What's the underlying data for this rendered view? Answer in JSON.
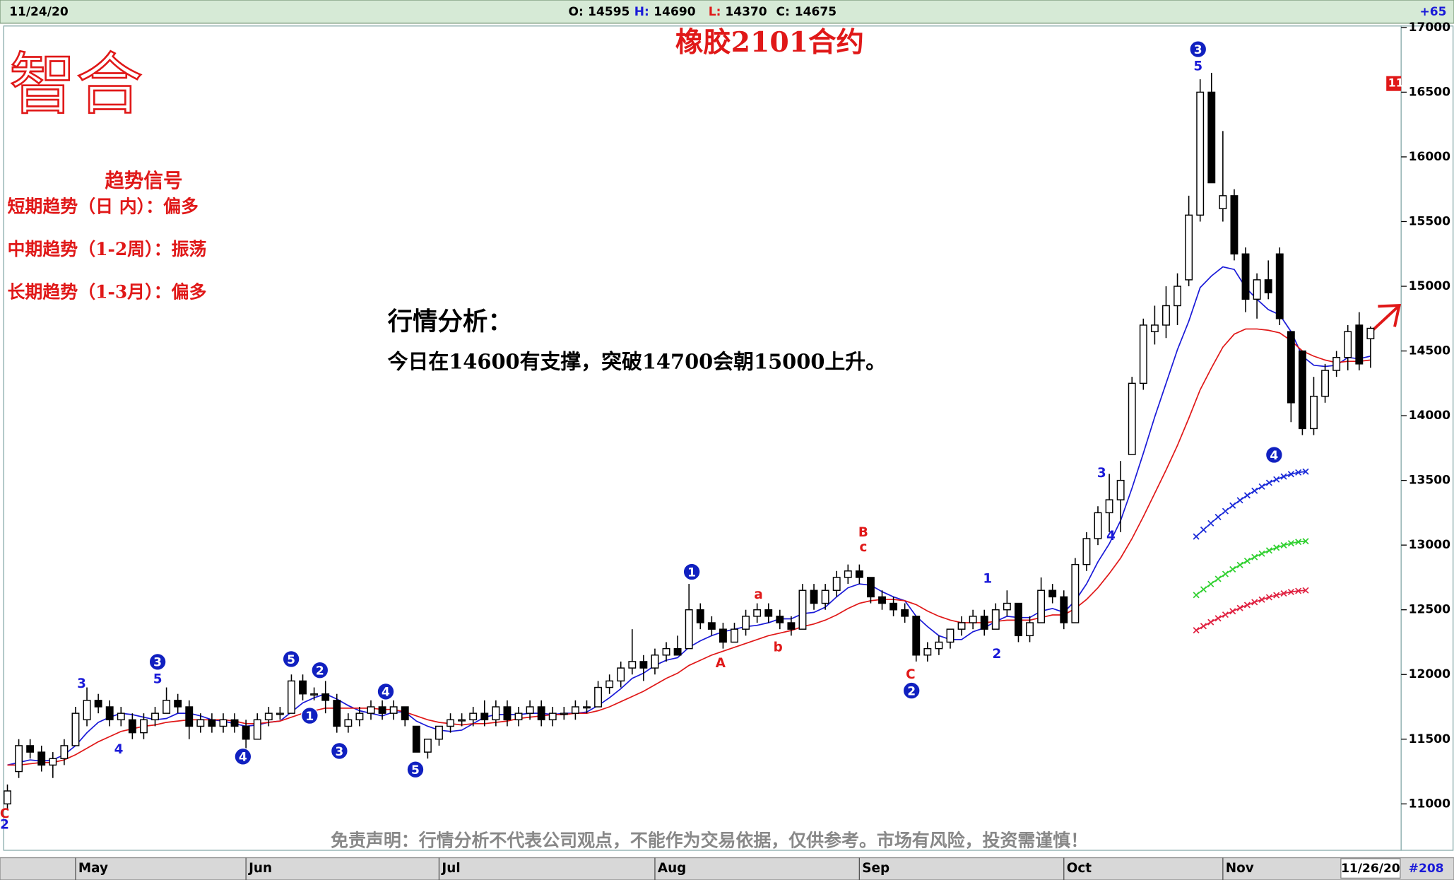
{
  "chart_data": {
    "type": "candlestick",
    "title": "橡胶2101合约",
    "logo": "智合",
    "header": {
      "date": "11/24/20",
      "quote": [
        {
          "label": "O:",
          "value": 14595
        },
        {
          "label": "H:",
          "value": 14690
        },
        {
          "label": "L:",
          "value": 14370
        },
        {
          "label": "C:",
          "value": 14675
        }
      ],
      "change": "+65"
    },
    "signals": {
      "title": "趋势信号",
      "lines": [
        "短期趋势（日 内）：偏多",
        "中期趋势（1-2周）：振荡",
        "长期趋势（1-3月）：偏多"
      ]
    },
    "analysis": {
      "title": "行情分析：",
      "text": "今日在14600有支撑，突破14700会朝15000上升。"
    },
    "disclaimer": "免责声明：行情分析不代表公司观点，不能作为交易依据，仅供参考。市场有风险，投资需谨慎！",
    "footer_date": "11/26/20",
    "bar_count": "#208",
    "price_flag": "11",
    "ylim": [
      10660,
      17000
    ],
    "yticks": [
      11000,
      11500,
      12000,
      12500,
      13000,
      13500,
      14000,
      14500,
      15000,
      15500,
      16000,
      16500,
      17000
    ],
    "categories": [
      null,
      null,
      null,
      null,
      null,
      null,
      "May",
      null,
      null,
      null,
      null,
      null,
      null,
      null,
      null,
      null,
      null,
      null,
      null,
      null,
      null,
      "Jun",
      null,
      null,
      null,
      null,
      null,
      null,
      null,
      null,
      null,
      null,
      null,
      null,
      null,
      null,
      null,
      null,
      "Jul",
      null,
      null,
      null,
      null,
      null,
      null,
      null,
      null,
      null,
      null,
      null,
      null,
      null,
      null,
      null,
      null,
      null,
      null,
      "Aug",
      null,
      null,
      null,
      null,
      null,
      null,
      null,
      null,
      null,
      null,
      null,
      null,
      null,
      null,
      null,
      null,
      null,
      "Sep",
      null,
      null,
      null,
      null,
      null,
      null,
      null,
      null,
      null,
      null,
      null,
      null,
      null,
      null,
      null,
      null,
      null,
      "Oct",
      null,
      null,
      null,
      null,
      null,
      null,
      null,
      null,
      null,
      null,
      null,
      null,
      null,
      "Nov",
      null,
      null,
      null,
      null,
      null,
      null,
      null,
      null,
      null,
      null,
      null,
      null,
      null
    ],
    "open": [
      11000,
      11250,
      11450,
      11400,
      11300,
      11350,
      11450,
      11650,
      11800,
      11750,
      11650,
      11650,
      11550,
      11650,
      11700,
      11800,
      11750,
      11600,
      11650,
      11600,
      11650,
      11600,
      11500,
      11650,
      11700,
      11700,
      11950,
      11850,
      11850,
      11800,
      11600,
      11650,
      11700,
      11750,
      11700,
      11750,
      11600,
      11400,
      11500,
      11600,
      11650,
      11650,
      11700,
      11650,
      11750,
      11650,
      11700,
      11750,
      11650,
      11700,
      11700,
      11750,
      11750,
      11900,
      11950,
      12050,
      12100,
      12050,
      12150,
      12200,
      12200,
      12500,
      12400,
      12350,
      12250,
      12350,
      12450,
      12500,
      12450,
      12400,
      12350,
      12650,
      12550,
      12650,
      12750,
      12800,
      12750,
      12600,
      12550,
      12500,
      12450,
      12150,
      12200,
      12250,
      12350,
      12400,
      12450,
      12350,
      12500,
      12550,
      12300,
      12400,
      12650,
      12600,
      12400,
      12850,
      13050,
      13250,
      13350,
      13700,
      14250,
      14650,
      14700,
      14850,
      15050,
      15550,
      16500,
      15600,
      15700,
      15250,
      14900,
      15050,
      15250,
      14650,
      14500,
      13900,
      14150,
      14350,
      14450,
      14700,
      14595
    ],
    "high": [
      11150,
      11500,
      11500,
      11450,
      11400,
      11500,
      11750,
      11900,
      11850,
      11800,
      11750,
      11700,
      11700,
      11750,
      11900,
      11850,
      11800,
      11700,
      11700,
      11700,
      11700,
      11650,
      11700,
      11750,
      11750,
      12000,
      12000,
      11900,
      11950,
      11850,
      11700,
      11750,
      11800,
      11800,
      11800,
      11750,
      11600,
      11500,
      11600,
      11700,
      11700,
      11750,
      11800,
      11800,
      11800,
      11750,
      11800,
      11800,
      11750,
      11750,
      11800,
      11800,
      11950,
      12000,
      12100,
      12350,
      12150,
      12200,
      12250,
      12300,
      12700,
      12550,
      12450,
      12400,
      12400,
      12500,
      12550,
      12550,
      12500,
      12450,
      12700,
      12700,
      12700,
      12800,
      12850,
      12850,
      12750,
      12650,
      12600,
      12550,
      12450,
      12250,
      12300,
      12350,
      12450,
      12500,
      12500,
      12550,
      12650,
      12550,
      12450,
      12750,
      12700,
      12650,
      12900,
      13100,
      13300,
      13550,
      13650,
      14300,
      14750,
      14850,
      15000,
      15100,
      15700,
      16600,
      16650,
      16200,
      15750,
      15300,
      15100,
      15200,
      15300,
      14650,
      14500,
      14300,
      14400,
      14500,
      14700,
      14800,
      14690
    ],
    "low": [
      10950,
      11200,
      11350,
      11250,
      11200,
      11300,
      11450,
      11600,
      11700,
      11600,
      11600,
      11500,
      11500,
      11600,
      11700,
      11700,
      11500,
      11550,
      11550,
      11550,
      11550,
      11400,
      11500,
      11600,
      11650,
      11700,
      11800,
      11800,
      11700,
      11550,
      11550,
      11600,
      11650,
      11650,
      11650,
      11600,
      11400,
      11350,
      11450,
      11550,
      11600,
      11600,
      11600,
      11600,
      11600,
      11600,
      11650,
      11600,
      11600,
      11650,
      11650,
      11700,
      11750,
      11850,
      11900,
      12000,
      11950,
      12000,
      12100,
      12150,
      12200,
      12350,
      12300,
      12200,
      12250,
      12300,
      12400,
      12400,
      12350,
      12300,
      12350,
      12500,
      12500,
      12600,
      12700,
      12700,
      12550,
      12500,
      12450,
      12400,
      12100,
      12100,
      12150,
      12200,
      12300,
      12350,
      12300,
      12350,
      12450,
      12250,
      12250,
      12400,
      12550,
      12350,
      12400,
      12800,
      13000,
      13100,
      13100,
      13700,
      14200,
      14550,
      14600,
      14700,
      15000,
      15500,
      15800,
      15500,
      15200,
      14800,
      14750,
      14900,
      14700,
      13950,
      13850,
      13850,
      14100,
      14300,
      14350,
      14350,
      14370
    ],
    "close": [
      11100,
      11450,
      11400,
      11300,
      11350,
      11450,
      11700,
      11800,
      11750,
      11650,
      11700,
      11550,
      11650,
      11700,
      11800,
      11750,
      11600,
      11650,
      11600,
      11650,
      11600,
      11500,
      11650,
      11700,
      11700,
      11950,
      11850,
      11850,
      11800,
      11600,
      11650,
      11700,
      11750,
      11700,
      11750,
      11650,
      11400,
      11500,
      11600,
      11650,
      11650,
      11700,
      11650,
      11750,
      11650,
      11700,
      11750,
      11650,
      11700,
      11700,
      11750,
      11750,
      11900,
      11950,
      12050,
      12100,
      12050,
      12150,
      12200,
      12150,
      12500,
      12400,
      12350,
      12250,
      12350,
      12450,
      12500,
      12450,
      12400,
      12350,
      12650,
      12550,
      12650,
      12750,
      12800,
      12750,
      12600,
      12550,
      12500,
      12450,
      12150,
      12200,
      12250,
      12350,
      12400,
      12450,
      12350,
      12500,
      12550,
      12300,
      12400,
      12650,
      12600,
      12400,
      12850,
      13050,
      13250,
      13350,
      13500,
      14250,
      14700,
      14700,
      14850,
      15000,
      15550,
      16500,
      15800,
      15700,
      15250,
      14900,
      15050,
      14950,
      14750,
      14100,
      13900,
      14150,
      14350,
      14450,
      14650,
      14400,
      14675
    ],
    "overlays": [
      {
        "color": "#1a1ad8",
        "values": [
          11300,
          11320,
          11340,
          11330,
          11340,
          11380,
          11450,
          11550,
          11630,
          11670,
          11700,
          11690,
          11670,
          11650,
          11660,
          11700,
          11700,
          11680,
          11650,
          11640,
          11620,
          11600,
          11610,
          11630,
          11640,
          11710,
          11780,
          11820,
          11850,
          11810,
          11760,
          11720,
          11700,
          11680,
          11710,
          11710,
          11640,
          11600,
          11570,
          11560,
          11570,
          11620,
          11670,
          11690,
          11690,
          11690,
          11700,
          11700,
          11690,
          11700,
          11700,
          11710,
          11760,
          11820,
          11890,
          11970,
          12010,
          12070,
          12110,
          12130,
          12210,
          12260,
          12300,
          12330,
          12350,
          12370,
          12380,
          12400,
          12430,
          12430,
          12470,
          12480,
          12520,
          12600,
          12670,
          12700,
          12690,
          12640,
          12600,
          12570,
          12450,
          12370,
          12300,
          12270,
          12270,
          12330,
          12360,
          12410,
          12450,
          12440,
          12440,
          12490,
          12510,
          12480,
          12570,
          12700,
          12870,
          13010,
          13190,
          13440,
          13710,
          13990,
          14250,
          14510,
          14730,
          14990,
          15080,
          15150,
          15130,
          14990,
          14900,
          14820,
          14780,
          14650,
          14460,
          14390,
          14380,
          14390,
          14450,
          14440,
          14460
        ]
      },
      {
        "color": "#e01818",
        "values": [
          11300,
          11300,
          11310,
          11320,
          11320,
          11340,
          11380,
          11430,
          11480,
          11520,
          11560,
          11580,
          11600,
          11610,
          11630,
          11640,
          11650,
          11650,
          11650,
          11650,
          11640,
          11620,
          11620,
          11630,
          11640,
          11670,
          11700,
          11720,
          11740,
          11740,
          11740,
          11740,
          11740,
          11730,
          11730,
          11710,
          11680,
          11650,
          11630,
          11620,
          11610,
          11620,
          11620,
          11630,
          11640,
          11660,
          11670,
          11680,
          11690,
          11690,
          11700,
          11700,
          11720,
          11750,
          11790,
          11830,
          11870,
          11920,
          11970,
          12010,
          12070,
          12110,
          12150,
          12180,
          12210,
          12240,
          12270,
          12300,
          12320,
          12340,
          12370,
          12390,
          12420,
          12460,
          12510,
          12550,
          12570,
          12580,
          12580,
          12570,
          12540,
          12490,
          12450,
          12420,
          12400,
          12400,
          12400,
          12410,
          12420,
          12420,
          12420,
          12440,
          12460,
          12460,
          12510,
          12580,
          12670,
          12780,
          12900,
          13050,
          13220,
          13400,
          13580,
          13770,
          13980,
          14200,
          14370,
          14530,
          14630,
          14670,
          14670,
          14660,
          14640,
          14580,
          14500,
          14460,
          14430,
          14410,
          14420,
          14420,
          14430
        ]
      }
    ],
    "annotations": [
      "3",
      "5",
      "2",
      "1",
      "4",
      "3",
      "4",
      "5",
      "1",
      "2",
      "3",
      "4",
      "3",
      "5",
      "4",
      "5",
      "1",
      "2",
      "3",
      "4",
      "A",
      "a",
      "b",
      "B",
      "c",
      "C",
      "C",
      "2"
    ]
  }
}
